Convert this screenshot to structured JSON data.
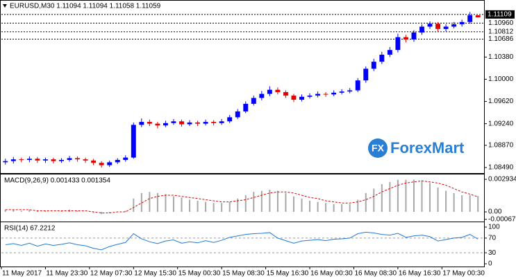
{
  "chart_data": [
    {
      "type": "candlestick",
      "title": "EURUSD,M30  1.11094 1.11094 1.11058 1.11059",
      "logo_badge": "FX",
      "logo_text": "ForexMart",
      "up_color": "#0000ff",
      "down_color": "#e00000",
      "open": [
        1.0858,
        1.086,
        1.0863,
        1.0862,
        1.0864,
        1.0861,
        1.0863,
        1.086,
        1.0862,
        1.0865,
        1.0863,
        1.0861,
        1.0857,
        1.0853,
        1.0858,
        1.0862,
        1.0866,
        1.0922,
        1.0927,
        1.0924,
        1.0921,
        1.0925,
        1.0928,
        1.0923,
        1.0926,
        1.0924,
        1.0927,
        1.0925,
        1.0928,
        1.0935,
        1.0945,
        1.0958,
        1.0968,
        1.0975,
        1.0982,
        1.0978,
        1.0972,
        1.0965,
        1.097,
        1.0972,
        1.0975,
        1.0974,
        1.0977,
        1.0979,
        1.0981,
        1.0998,
        1.1018,
        1.103,
        1.1042,
        1.105,
        1.1072,
        1.1068,
        1.108,
        1.109,
        1.1095,
        1.1086,
        1.109,
        1.1094,
        1.1098,
        1.11094
      ],
      "high": [
        1.0864,
        1.0867,
        1.0866,
        1.0868,
        1.0867,
        1.0866,
        1.0866,
        1.0865,
        1.0869,
        1.0868,
        1.0866,
        1.0864,
        1.086,
        1.0861,
        1.0865,
        1.087,
        1.0926,
        1.0933,
        1.0931,
        1.0927,
        1.0929,
        1.0932,
        1.0931,
        1.093,
        1.0929,
        1.0931,
        1.093,
        1.0932,
        1.0939,
        1.0949,
        1.0962,
        1.0972,
        1.098,
        1.0988,
        1.0986,
        1.0981,
        1.0975,
        1.0974,
        1.0976,
        1.0979,
        1.0978,
        1.0981,
        1.0983,
        1.0985,
        1.1002,
        1.1022,
        1.1035,
        1.1047,
        1.1055,
        1.1078,
        1.1076,
        1.1084,
        1.1094,
        1.1099,
        1.1098,
        1.1094,
        1.1098,
        1.1102,
        1.1115,
        1.11094
      ],
      "low": [
        1.0854,
        1.0856,
        1.0858,
        1.0858,
        1.0857,
        1.0857,
        1.0856,
        1.0857,
        1.0859,
        1.0859,
        1.0857,
        1.0853,
        1.0849,
        1.085,
        1.0855,
        1.0859,
        1.0864,
        1.0918,
        1.092,
        1.0916,
        1.0918,
        1.0922,
        1.0919,
        1.092,
        1.092,
        1.0921,
        1.0921,
        1.0922,
        1.0925,
        1.0932,
        1.0942,
        1.0955,
        1.0964,
        1.0971,
        1.0974,
        1.0968,
        1.0961,
        1.0962,
        1.0967,
        1.0969,
        1.097,
        1.0971,
        1.0974,
        1.0976,
        1.0978,
        1.0994,
        1.1014,
        1.1026,
        1.1038,
        1.1046,
        1.1063,
        1.1064,
        1.1076,
        1.1086,
        1.1082,
        1.1082,
        1.1087,
        1.109,
        1.1095,
        1.11058
      ],
      "close": [
        1.086,
        1.0863,
        1.0862,
        1.0864,
        1.0861,
        1.0863,
        1.086,
        1.0862,
        1.0865,
        1.0863,
        1.0861,
        1.0857,
        1.0853,
        1.0858,
        1.0862,
        1.0866,
        1.0922,
        1.0927,
        1.0924,
        1.0921,
        1.0925,
        1.0928,
        1.0923,
        1.0926,
        1.0924,
        1.0927,
        1.0925,
        1.0928,
        1.0935,
        1.0945,
        1.0958,
        1.0968,
        1.0975,
        1.0982,
        1.0978,
        1.0972,
        1.0965,
        1.097,
        1.0972,
        1.0975,
        1.0974,
        1.0977,
        1.0979,
        1.0981,
        1.0998,
        1.1018,
        1.103,
        1.1042,
        1.105,
        1.1072,
        1.1068,
        1.108,
        1.109,
        1.1095,
        1.1086,
        1.109,
        1.1094,
        1.1098,
        1.11094,
        1.11059
      ],
      "ylim": [
        1.08395,
        1.11332
      ],
      "yticks": [
        {
          "value": 1.1038,
          "label": "1.10380"
        },
        {
          "value": 1.1,
          "label": "1.10000"
        },
        {
          "value": 1.0962,
          "label": "1.09620"
        },
        {
          "value": 1.0924,
          "label": "1.09240"
        },
        {
          "value": 1.0887,
          "label": "1.08870"
        },
        {
          "value": 1.0849,
          "label": "1.08490"
        }
      ],
      "levels": [
        {
          "value": 1.1096,
          "label": "1.10960"
        },
        {
          "value": 1.10812,
          "label": "1.10812"
        },
        {
          "value": 1.10686,
          "label": "1.10686"
        }
      ],
      "current_price": {
        "value": 1.11109,
        "label": "1.11109"
      },
      "xticks": [
        {
          "value": 0,
          "label": "11 May 2017"
        },
        {
          "value": 5.5,
          "label": "11 May 23:30"
        },
        {
          "value": 11,
          "label": "12 May 07:30"
        },
        {
          "value": 16.5,
          "label": "12 May 15:30"
        },
        {
          "value": 22,
          "label": "15 May 00:30"
        },
        {
          "value": 27.5,
          "label": "15 May 08:30"
        },
        {
          "value": 33,
          "label": "15 May 16:30"
        },
        {
          "value": 38.5,
          "label": "16 May 00:30"
        },
        {
          "value": 44,
          "label": "16 May 08:30"
        },
        {
          "value": 49.5,
          "label": "16 May 16:30"
        },
        {
          "value": 55,
          "label": "17 May 00:30"
        }
      ]
    },
    {
      "type": "macd",
      "title": "MACD(9,26,9) 0.001433 0.001354",
      "histogram_color": "#a8a8a8",
      "signal_color": "#e00000",
      "histogram": [
        0.0002,
        0.0002,
        0.0001,
        0.0002,
        0.0001,
        0.0001,
        0.0,
        0.0001,
        0.0002,
        0.0001,
        0.0,
        -0.0001,
        -0.0002,
        -0.0001,
        0.0,
        0.0001,
        0.0012,
        0.0017,
        0.0018,
        0.0017,
        0.0016,
        0.0014,
        0.0013,
        0.0011,
        0.001,
        0.0009,
        0.0008,
        0.0008,
        0.0009,
        0.0012,
        0.0015,
        0.0018,
        0.0019,
        0.002,
        0.0019,
        0.0017,
        0.0014,
        0.0012,
        0.001,
        0.0009,
        0.0008,
        0.0007,
        0.0007,
        0.0007,
        0.0011,
        0.0017,
        0.0021,
        0.0025,
        0.0027,
        0.0029,
        0.0029,
        0.0029,
        0.0028,
        0.0026,
        0.0022,
        0.0019,
        0.0017,
        0.0015,
        0.0015,
        0.001433
      ],
      "signal": [
        0.0002,
        0.0002,
        0.0002,
        0.0002,
        0.0001,
        0.0001,
        0.0001,
        0.0001,
        0.0001,
        0.0001,
        0.0001,
        0.0,
        -0.0001,
        -0.0001,
        0.0,
        0.0,
        0.0004,
        0.0008,
        0.0012,
        0.0014,
        0.0015,
        0.0015,
        0.0014,
        0.0013,
        0.0012,
        0.0011,
        0.001,
        0.0009,
        0.0009,
        0.001,
        0.0011,
        0.0013,
        0.0015,
        0.0017,
        0.0018,
        0.0018,
        0.0017,
        0.0015,
        0.0013,
        0.0012,
        0.001,
        0.0009,
        0.0008,
        0.0008,
        0.0009,
        0.0011,
        0.0014,
        0.0018,
        0.0021,
        0.0024,
        0.0026,
        0.0027,
        0.0028,
        0.0027,
        0.0026,
        0.0024,
        0.0021,
        0.0018,
        0.0016,
        0.001354
      ],
      "ylim": [
        -0.00087,
        0.00331
      ],
      "yticks": [
        0.002934,
        {
          "value": 0,
          "label": "0.00"
        },
        -0.000672
      ]
    },
    {
      "type": "line",
      "title": "RSI(14) 67.2212",
      "color": "#1e78d8",
      "values": [
        52,
        55,
        50,
        56,
        48,
        54,
        50,
        53,
        57,
        52,
        49,
        42,
        38,
        47,
        53,
        58,
        82,
        68,
        60,
        55,
        62,
        65,
        56,
        60,
        57,
        63,
        58,
        64,
        72,
        76,
        80,
        82,
        83,
        85,
        70,
        63,
        56,
        62,
        64,
        66,
        63,
        67,
        68,
        70,
        82,
        86,
        84,
        80,
        78,
        83,
        72,
        76,
        78,
        74,
        62,
        66,
        70,
        72,
        80,
        67.2212
      ],
      "ylim": [
        -7.5,
        111.3
      ],
      "yticks": [
        100,
        70,
        30,
        0
      ],
      "dashed_levels": [
        70,
        30
      ]
    }
  ]
}
